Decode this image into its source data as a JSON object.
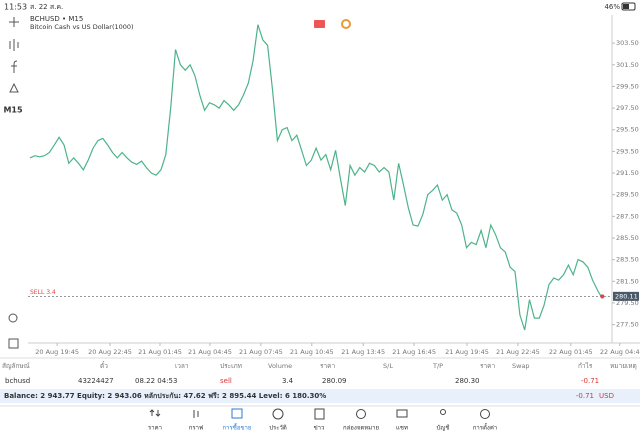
{
  "status_bar": {
    "time": "11:53",
    "date": "ส. 22 ส.ค.",
    "battery": "46%"
  },
  "toolbar": {
    "timeframe": "M15"
  },
  "chart": {
    "type": "line",
    "symbol_title": "BCHUSD • M15",
    "description": "Bitcoin Cash vs US Dollar(1000)",
    "color": "#4db38a",
    "values": [
      292.9,
      293.1,
      293.0,
      293.1,
      293.4,
      294.1,
      294.8,
      294.1,
      292.4,
      292.9,
      292.4,
      291.8,
      292.7,
      293.8,
      294.5,
      294.7,
      294.1,
      293.4,
      292.9,
      293.4,
      292.9,
      292.5,
      292.3,
      292.6,
      292.0,
      291.5,
      291.3,
      291.8,
      293.2,
      297.5,
      302.9,
      301.5,
      301.0,
      301.5,
      300.5,
      298.7,
      297.3,
      298.0,
      297.8,
      297.5,
      298.2,
      297.8,
      297.3,
      297.8,
      298.7,
      299.8,
      301.9,
      305.2,
      303.8,
      303.3,
      299.2,
      294.5,
      295.5,
      295.7,
      294.5,
      295.0,
      293.6,
      292.2,
      292.7,
      293.8,
      292.7,
      293.2,
      291.8,
      293.6,
      291.0,
      288.5,
      292.2,
      291.3,
      292.0,
      291.6,
      292.4,
      292.2,
      291.6,
      292.0,
      291.6,
      289.0,
      292.4,
      290.4,
      288.3,
      286.7,
      286.6,
      287.7,
      289.5,
      289.9,
      290.4,
      289.0,
      289.5,
      288.1,
      287.8,
      286.7,
      284.6,
      285.1,
      284.9,
      286.2,
      284.6,
      286.7,
      285.8,
      284.6,
      284.2,
      282.8,
      282.4,
      278.4,
      277.0,
      279.8,
      278.1,
      278.1,
      279.3,
      281.2,
      281.8,
      281.6,
      282.1,
      283.0,
      282.1,
      283.5,
      283.3,
      282.8,
      281.6,
      280.7,
      279.9
    ],
    "xlim": [
      0,
      120
    ],
    "xticks": [
      {
        "value": 5.6,
        "label": "20 Aug 19:45"
      },
      {
        "value": 16.5,
        "label": "20 Aug 22:45"
      },
      {
        "value": 26.8,
        "label": "21 Aug 01:45"
      },
      {
        "value": 37.1,
        "label": "21 Aug 04:45"
      },
      {
        "value": 47.6,
        "label": "21 Aug 07:45"
      },
      {
        "value": 58.1,
        "label": "21 Aug 10:45"
      },
      {
        "value": 68.7,
        "label": "21 Aug 13:45"
      },
      {
        "value": 79.2,
        "label": "21 Aug 16:45"
      },
      {
        "value": 90.1,
        "label": "21 Aug 19:45"
      },
      {
        "value": 100.6,
        "label": "21 Aug 22:45"
      },
      {
        "value": 111.5,
        "label": "22 Aug 01:45"
      },
      {
        "value": 121.6,
        "label": "22 Aug 04:4"
      }
    ],
    "ylim": [
      275.8,
      306.1
    ],
    "yticks": [
      {
        "value": 303.5,
        "label": "303.50"
      },
      {
        "value": 301.5,
        "label": "301.50"
      },
      {
        "value": 299.5,
        "label": "299.50"
      },
      {
        "value": 297.5,
        "label": "297.50"
      },
      {
        "value": 295.5,
        "label": "295.50"
      },
      {
        "value": 293.5,
        "label": "293.50"
      },
      {
        "value": 291.5,
        "label": "291.50"
      },
      {
        "value": 289.5,
        "label": "289.50"
      },
      {
        "value": 287.5,
        "label": "287.50"
      },
      {
        "value": 285.5,
        "label": "285.50"
      },
      {
        "value": 283.5,
        "label": "283.50"
      },
      {
        "value": 281.5,
        "label": "281.50"
      },
      {
        "value": 279.5,
        "label": "279.50"
      },
      {
        "value": 277.5,
        "label": "277.50"
      }
    ],
    "current_price": 280.11,
    "order_line": {
      "label": "SELL 3.4",
      "price": 280.09
    }
  },
  "trades_table": {
    "columns": [
      "สัญลักษณ์",
      "ตั๋ว",
      "เวลา",
      "ประเภท",
      "Volume",
      "ราคา",
      "S/L",
      "T/P",
      "ราคา",
      "Swap",
      "กำไร",
      "หมายเหตุ"
    ],
    "rows": [
      {
        "symbol": "bchusd",
        "ticket": "43224427",
        "time": "08.22 04:53",
        "type": "sell",
        "volume": "3.4",
        "price": "280.09",
        "current_price": "280.30",
        "profit": "-0.71"
      }
    ]
  },
  "balance": {
    "text": "Balance: 2 943.77 Equity: 2 943.06 หลักประกัน: 47.62 ฟรี: 2 895.44 Level: 6 180.30%",
    "profit": "-0.71",
    "currency": "USD"
  },
  "nav": [
    "ราคา",
    "กราฟ",
    "การซื้อขาย",
    "ประวัติ",
    "ข่าว",
    "กล่องจดหมาย",
    "แชท",
    "บัญชี",
    "การตั้งค่า"
  ]
}
